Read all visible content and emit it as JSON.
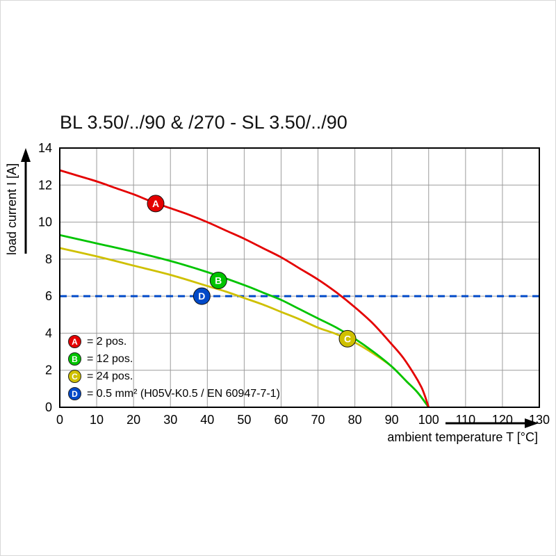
{
  "title": "BL 3.50/../90 & /270 - SL 3.50/../90",
  "chart_data": {
    "type": "line",
    "title": "BL 3.50/../90 & /270 - SL 3.50/../90",
    "xlabel": "ambient temperature T [°C]",
    "ylabel": "load current I [A]",
    "xlim": [
      0,
      130
    ],
    "ylim": [
      0,
      14
    ],
    "xticks": [
      0,
      10,
      20,
      30,
      40,
      50,
      60,
      70,
      80,
      90,
      100,
      110,
      120,
      130
    ],
    "yticks": [
      0,
      2,
      4,
      6,
      8,
      10,
      12,
      14
    ],
    "grid": true,
    "series": [
      {
        "name": "C",
        "label": "24 pos.",
        "color": "#cfc000",
        "style": "solid",
        "points": [
          [
            0,
            8.6
          ],
          [
            10,
            8.15
          ],
          [
            20,
            7.65
          ],
          [
            30,
            7.15
          ],
          [
            40,
            6.55
          ],
          [
            45,
            6.25
          ],
          [
            50,
            5.9
          ],
          [
            55,
            5.55
          ],
          [
            60,
            5.15
          ],
          [
            65,
            4.75
          ],
          [
            70,
            4.3
          ],
          [
            75,
            3.95
          ],
          [
            80,
            3.5
          ],
          [
            85,
            2.9
          ],
          [
            90,
            2.2
          ],
          [
            94,
            1.4
          ],
          [
            97,
            0.8
          ],
          [
            100,
            0
          ]
        ],
        "marker": {
          "x": 78,
          "y": 3.7
        }
      },
      {
        "name": "B",
        "label": "12 pos.",
        "color": "#00c400",
        "style": "solid",
        "points": [
          [
            0,
            9.3
          ],
          [
            10,
            8.85
          ],
          [
            20,
            8.4
          ],
          [
            30,
            7.9
          ],
          [
            40,
            7.3
          ],
          [
            50,
            6.6
          ],
          [
            55,
            6.2
          ],
          [
            60,
            5.8
          ],
          [
            65,
            5.3
          ],
          [
            70,
            4.8
          ],
          [
            75,
            4.3
          ],
          [
            80,
            3.7
          ],
          [
            85,
            3.0
          ],
          [
            90,
            2.2
          ],
          [
            94,
            1.4
          ],
          [
            97,
            0.8
          ],
          [
            100,
            0
          ]
        ],
        "marker": {
          "x": 43,
          "y": 6.85
        }
      },
      {
        "name": "A",
        "label": "2 pos.",
        "color": "#e40000",
        "style": "solid",
        "points": [
          [
            0,
            12.8
          ],
          [
            5,
            12.5
          ],
          [
            10,
            12.2
          ],
          [
            15,
            11.85
          ],
          [
            20,
            11.5
          ],
          [
            25,
            11.1
          ],
          [
            30,
            10.75
          ],
          [
            35,
            10.4
          ],
          [
            40,
            10.0
          ],
          [
            45,
            9.55
          ],
          [
            50,
            9.1
          ],
          [
            55,
            8.6
          ],
          [
            60,
            8.1
          ],
          [
            65,
            7.5
          ],
          [
            70,
            6.9
          ],
          [
            75,
            6.2
          ],
          [
            80,
            5.4
          ],
          [
            85,
            4.5
          ],
          [
            90,
            3.4
          ],
          [
            93,
            2.7
          ],
          [
            96,
            1.8
          ],
          [
            98,
            1.1
          ],
          [
            99,
            0.6
          ],
          [
            100,
            0
          ]
        ],
        "marker": {
          "x": 26,
          "y": 11.0
        }
      },
      {
        "name": "D",
        "label": "0.5 mm² (H05V-K0.5 / EN 60947-7-1)",
        "color": "#0049c8",
        "style": "dashed",
        "points": [
          [
            0,
            6
          ],
          [
            130,
            6
          ]
        ],
        "marker": {
          "x": 38.5,
          "y": 6
        }
      }
    ],
    "legend": [
      {
        "key": "A",
        "color": "#e40000",
        "text": "= 2 pos."
      },
      {
        "key": "B",
        "color": "#00c400",
        "text": "= 12 pos."
      },
      {
        "key": "C",
        "color": "#cfc000",
        "text": "= 24 pos."
      },
      {
        "key": "D",
        "color": "#0049c8",
        "text": "= 0.5 mm² (H05V-K0.5 / EN 60947-7-1)"
      }
    ],
    "legend_position": "lower-left-inside",
    "frame_color": "#000000",
    "grid_color": "#9c9c9c"
  }
}
